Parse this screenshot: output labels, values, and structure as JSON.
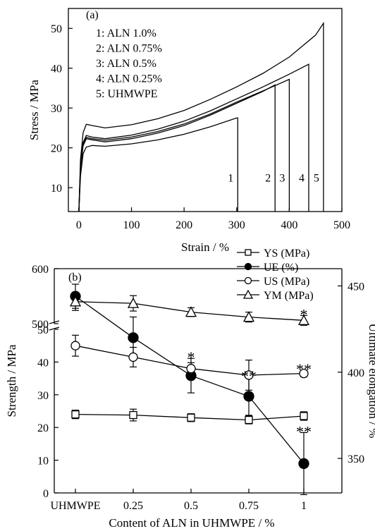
{
  "chart_data": [
    {
      "type": "line",
      "panel_label": "(a)",
      "xlabel": "Strain / %",
      "ylabel": "Stress / MPa",
      "xlim": [
        -20,
        500
      ],
      "ylim": [
        4,
        55
      ],
      "xticks": [
        "0",
        "100",
        "200",
        "300",
        "400",
        "500"
      ],
      "yticks": [
        "10",
        "20",
        "30",
        "40",
        "50"
      ],
      "legend_position": "top-left",
      "legend": [
        "1: ALN 1.0%",
        "2: ALN 0.75%",
        "3: ALN 0.5%",
        "4: ALN 0.25%",
        "5: UHMWPE"
      ],
      "series": [
        {
          "name": "1",
          "break_strain": 302,
          "points": [
            [
              0,
              4
            ],
            [
              3,
              13
            ],
            [
              8,
              18.5
            ],
            [
              14,
              20.2
            ],
            [
              25,
              20.6
            ],
            [
              50,
              20.4
            ],
            [
              100,
              21
            ],
            [
              150,
              22
            ],
            [
              200,
              23.4
            ],
            [
              250,
              25.3
            ],
            [
              300,
              27.5
            ]
          ]
        },
        {
          "name": "2",
          "break_strain": 373,
          "points": [
            [
              0,
              4
            ],
            [
              3,
              15
            ],
            [
              8,
              20.5
            ],
            [
              14,
              22.3
            ],
            [
              25,
              22
            ],
            [
              50,
              21.5
            ],
            [
              100,
              22.3
            ],
            [
              150,
              23.7
            ],
            [
              200,
              25.6
            ],
            [
              250,
              28.2
            ],
            [
              300,
              31.2
            ],
            [
              350,
              34.2
            ],
            [
              373,
              35.8
            ]
          ]
        },
        {
          "name": "3",
          "break_strain": 400,
          "points": [
            [
              0,
              4
            ],
            [
              3,
              15
            ],
            [
              8,
              20.8
            ],
            [
              14,
              22.6
            ],
            [
              25,
              22.3
            ],
            [
              50,
              21.9
            ],
            [
              100,
              22.7
            ],
            [
              150,
              24.1
            ],
            [
              200,
              26
            ],
            [
              250,
              28.5
            ],
            [
              300,
              31.5
            ],
            [
              350,
              34.3
            ],
            [
              400,
              37.2
            ]
          ]
        },
        {
          "name": "4",
          "break_strain": 437,
          "points": [
            [
              0,
              4
            ],
            [
              3,
              15.5
            ],
            [
              8,
              21.3
            ],
            [
              14,
              23.1
            ],
            [
              25,
              22.7
            ],
            [
              50,
              22.3
            ],
            [
              100,
              23.2
            ],
            [
              150,
              24.7
            ],
            [
              200,
              26.7
            ],
            [
              250,
              29.3
            ],
            [
              300,
              32.3
            ],
            [
              350,
              35.3
            ],
            [
              400,
              38.5
            ],
            [
              437,
              41
            ]
          ]
        },
        {
          "name": "5",
          "break_strain": 465,
          "points": [
            [
              0,
              4
            ],
            [
              3,
              17
            ],
            [
              8,
              23.8
            ],
            [
              14,
              25.9
            ],
            [
              25,
              25.6
            ],
            [
              50,
              25
            ],
            [
              100,
              25.8
            ],
            [
              150,
              27.3
            ],
            [
              200,
              29.4
            ],
            [
              250,
              32.2
            ],
            [
              300,
              35.3
            ],
            [
              350,
              38.7
            ],
            [
              400,
              42.8
            ],
            [
              450,
              48.3
            ],
            [
              465,
              51.3
            ]
          ]
        }
      ]
    },
    {
      "type": "line",
      "panel_label": "(b)",
      "xlabel": "Content of ALN in UHMWPE / %",
      "ylabel": "Strength / MPa",
      "y2label": "Ultimate elongation / %",
      "categories": [
        "UHMWPE",
        "0.25",
        "0.5",
        "0.75",
        "1"
      ],
      "ylim": [
        0,
        600
      ],
      "y_axis_break": [
        55,
        490
      ],
      "yticks_lower": [
        "0",
        "10",
        "20",
        "30",
        "40",
        "50"
      ],
      "yticks_upper": [
        "500",
        "600"
      ],
      "y2lim": [
        330,
        460
      ],
      "y2ticks": [
        "350",
        "400",
        "450"
      ],
      "legend_position": "top-right",
      "series": [
        {
          "name": "YS (MPa)",
          "marker": "square-open",
          "axis": "left",
          "values": [
            24,
            23.8,
            23,
            22.3,
            23.5
          ],
          "errors": [
            1.3,
            1.8,
            1.2,
            1.2,
            1.3
          ]
        },
        {
          "name": "UE (%)",
          "marker": "circle-filled",
          "axis": "right",
          "values": [
            444,
            420,
            398,
            386,
            347
          ],
          "errors": [
            7,
            12,
            10,
            11,
            18
          ]
        },
        {
          "name": "US (MPa)",
          "marker": "circle-open",
          "axis": "left",
          "values": [
            45,
            41.5,
            38,
            36,
            36.5
          ],
          "errors": [
            3.2,
            3,
            1.8,
            4.6,
            1
          ]
        },
        {
          "name": "YM (MPa)",
          "marker": "triangle-open",
          "axis": "left",
          "values": [
            540,
            537,
            521,
            512,
            506
          ],
          "errors": [
            16,
            14,
            8,
            9,
            9
          ]
        }
      ],
      "annotations": [
        {
          "category": "0.5",
          "series": "UE (%)",
          "text": "*"
        },
        {
          "category": "0.75",
          "series": "UE (%)",
          "text": "**"
        },
        {
          "category": "1",
          "series": "UE (%)",
          "text": "**"
        },
        {
          "category": "1",
          "series": "US (MPa)",
          "text": "**"
        },
        {
          "category": "1",
          "series": "YM (MPa)",
          "text": "*"
        }
      ]
    }
  ]
}
